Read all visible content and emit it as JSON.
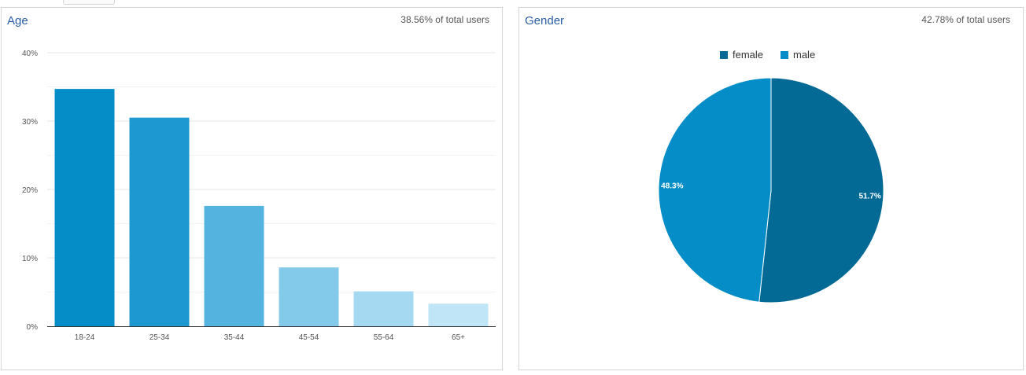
{
  "top_tab": "",
  "age_card": {
    "title": "Age",
    "subtitle": "38.56% of total users"
  },
  "gender_card": {
    "title": "Gender",
    "subtitle": "42.78% of total users"
  },
  "chart_data": [
    {
      "type": "bar",
      "title": "Age",
      "categories": [
        "18-24",
        "25-34",
        "35-44",
        "45-54",
        "55-64",
        "65+"
      ],
      "values": [
        34.7,
        30.5,
        17.6,
        8.6,
        5.1,
        3.3
      ],
      "colors": [
        "#058dc7",
        "#1e98d0",
        "#55b3df",
        "#82c9ea",
        "#a5d9f1",
        "#bfe5f6"
      ],
      "yticks": [
        "0%",
        "10%",
        "20%",
        "30%",
        "40%"
      ],
      "ylim": [
        0,
        40
      ],
      "grid": true
    },
    {
      "type": "pie",
      "title": "Gender",
      "slices": [
        {
          "label": "female",
          "value": 51.7,
          "display": "51.7%",
          "color": "#036a96"
        },
        {
          "label": "male",
          "value": 48.3,
          "display": "48.3%",
          "color": "#058dc7"
        }
      ],
      "legend_position": "top"
    }
  ]
}
